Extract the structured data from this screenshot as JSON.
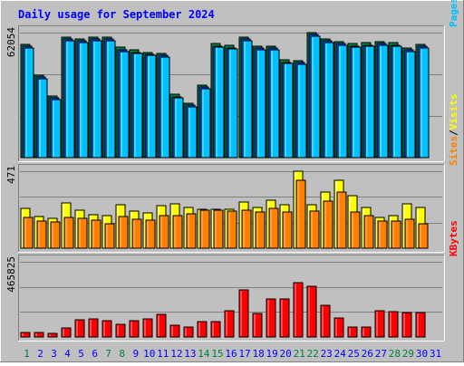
{
  "title": "Daily usage for September 2024",
  "colors": {
    "frame_bg": "#C0C0C0",
    "border_light": "#FFFFFF",
    "border_dark": "#808080",
    "grid": "#808080",
    "title_text": "#0000FF",
    "pages": "#00C0FF",
    "files": "#0040FF",
    "hits": "#008040",
    "visits": "#FFFF00",
    "sites": "#FF8000",
    "kbytes": "#FF0000",
    "weekend_label": "#008040",
    "weekday_label": "#0000FF"
  },
  "chart_data": [
    {
      "type": "bar",
      "panel": "hits-files-pages",
      "y_max_label": "62054",
      "legend": [
        {
          "name": "Pages",
          "color": "#00C0FF"
        },
        {
          "name": "Files",
          "color": "#0040FF"
        },
        {
          "name": "Hits",
          "color": "#008040"
        }
      ],
      "legend_separator": "/",
      "ylim": [
        0,
        62054
      ],
      "categories": [
        "1",
        "2",
        "3",
        "4",
        "5",
        "6",
        "7",
        "8",
        "9",
        "10",
        "11",
        "12",
        "13",
        "14",
        "15",
        "16",
        "17",
        "18",
        "19",
        "20",
        "21",
        "22",
        "23",
        "24",
        "25",
        "26",
        "27",
        "28",
        "29",
        "30",
        "31"
      ],
      "series": [
        {
          "name": "Hits",
          "values": [
            56200,
            41100,
            30500,
            59700,
            58800,
            60000,
            60000,
            54700,
            53300,
            52300,
            51800,
            31300,
            27100,
            35900,
            56500,
            55600,
            59700,
            55200,
            55200,
            48400,
            48000,
            62000,
            58900,
            57600,
            56500,
            56900,
            57500,
            56900,
            54400,
            56200,
            null
          ]
        },
        {
          "name": "Files",
          "values": [
            55200,
            40100,
            29500,
            58700,
            57800,
            59000,
            59000,
            53700,
            52300,
            51300,
            50800,
            30300,
            26100,
            34900,
            55500,
            54600,
            58700,
            54200,
            54200,
            47400,
            47000,
            61000,
            57900,
            56600,
            55500,
            55900,
            56500,
            55900,
            53400,
            55200,
            null
          ]
        },
        {
          "name": "Pages",
          "values": [
            54600,
            39300,
            28800,
            57900,
            57100,
            58200,
            58000,
            52800,
            51600,
            50600,
            50100,
            29600,
            25400,
            34200,
            54700,
            53900,
            57900,
            53500,
            53500,
            46700,
            46400,
            60100,
            57100,
            55900,
            54800,
            55200,
            55800,
            55100,
            52700,
            54500,
            null
          ]
        }
      ]
    },
    {
      "type": "bar",
      "panel": "visits-sites",
      "y_max_label": "471",
      "legend": [
        {
          "name": "Sites",
          "color": "#FF8000"
        },
        {
          "name": "Visits",
          "color": "#FFFF00"
        }
      ],
      "legend_separator": "/",
      "ylim": [
        0,
        471
      ],
      "categories": [
        "1",
        "2",
        "3",
        "4",
        "5",
        "6",
        "7",
        "8",
        "9",
        "10",
        "11",
        "12",
        "13",
        "14",
        "15",
        "16",
        "17",
        "18",
        "19",
        "20",
        "21",
        "22",
        "23",
        "24",
        "25",
        "26",
        "27",
        "28",
        "29",
        "30",
        "31"
      ],
      "series": [
        {
          "name": "Visits",
          "values": [
            246,
            195,
            184,
            278,
            234,
            207,
            200,
            268,
            225,
            215,
            261,
            269,
            248,
            241,
            240,
            238,
            283,
            251,
            295,
            268,
            472,
            266,
            346,
            416,
            320,
            250,
            191,
            201,
            270,
            248,
            null
          ]
        },
        {
          "name": "Sites",
          "values": [
            191,
            167,
            162,
            188,
            184,
            170,
            150,
            195,
            180,
            173,
            198,
            199,
            210,
            232,
            232,
            227,
            232,
            223,
            246,
            219,
            414,
            225,
            287,
            345,
            221,
            199,
            168,
            169,
            175,
            147,
            null
          ]
        }
      ]
    },
    {
      "type": "bar",
      "panel": "kbytes",
      "y_max_label": "465825",
      "legend": [
        {
          "name": "KBytes",
          "color": "#FF0000"
        }
      ],
      "ylim": [
        0,
        465825
      ],
      "categories": [
        "1",
        "2",
        "3",
        "4",
        "5",
        "6",
        "7",
        "8",
        "9",
        "10",
        "11",
        "12",
        "13",
        "14",
        "15",
        "16",
        "17",
        "18",
        "19",
        "20",
        "21",
        "22",
        "23",
        "24",
        "25",
        "26",
        "27",
        "28",
        "29",
        "30",
        "31"
      ],
      "series": [
        {
          "name": "KBytes",
          "values": [
            28000,
            28000,
            24000,
            57000,
            106000,
            113000,
            100000,
            79000,
            103000,
            111000,
            139000,
            74000,
            59000,
            94000,
            94000,
            161000,
            294000,
            147000,
            237000,
            233000,
            335000,
            316000,
            194000,
            120000,
            62000,
            59000,
            161000,
            157000,
            153000,
            153000,
            null
          ]
        }
      ]
    }
  ],
  "x_axis": {
    "labels": [
      "1",
      "2",
      "3",
      "4",
      "5",
      "6",
      "7",
      "8",
      "9",
      "10",
      "11",
      "12",
      "13",
      "14",
      "15",
      "16",
      "17",
      "18",
      "19",
      "20",
      "21",
      "22",
      "23",
      "24",
      "25",
      "26",
      "27",
      "28",
      "29",
      "30",
      "31"
    ],
    "weekend_days": [
      "1",
      "7",
      "8",
      "14",
      "15",
      "21",
      "22",
      "28",
      "29"
    ]
  }
}
